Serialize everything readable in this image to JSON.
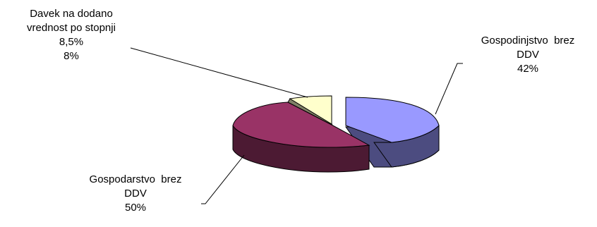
{
  "chart_data": {
    "type": "pie",
    "title": "",
    "slices": [
      {
        "label_lines": [
          "Gospodinjstvo  brez",
          "DDV"
        ],
        "value": 42,
        "value_text": "42%",
        "color": "#9999ff",
        "side_color": "#4c4c80"
      },
      {
        "label_lines": [
          "Gospodarstvo  brez",
          "DDV"
        ],
        "value": 50,
        "value_text": "50%",
        "color": "#993366",
        "side_color": "#4c1a33"
      },
      {
        "label_lines": [
          "Davek na dodano",
          "vrednost po stopnji",
          "8,5%"
        ],
        "value": 8,
        "value_text": "8%",
        "color": "#ffffcc",
        "side_color": "#808066"
      }
    ],
    "extra_side_color": "#808060"
  }
}
